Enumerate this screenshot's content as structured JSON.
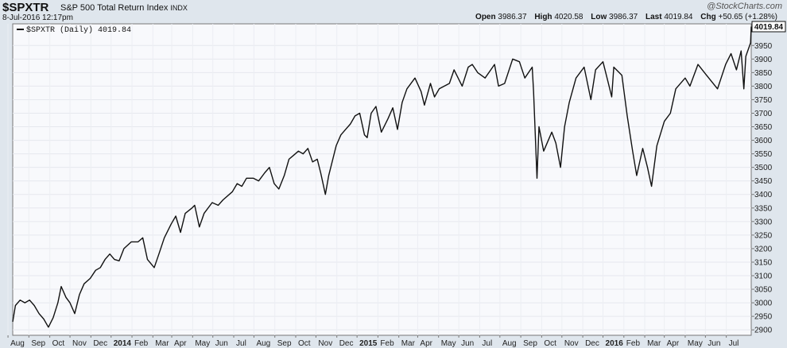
{
  "header": {
    "symbol": "$SPXTR",
    "name": "S&P 500 Total Return Index",
    "exchange": "INDX",
    "timestamp": "8-Jul-2016 12:17pm",
    "brand": "@StockCharts.com",
    "open_label": "Open",
    "open": "3986.37",
    "high_label": "High",
    "high": "4020.58",
    "low_label": "Low",
    "low": "3986.37",
    "last_label": "Last",
    "last": "4019.84",
    "chg_label": "Chg",
    "chg": "+50.65 (+1.28%)"
  },
  "chart_data": {
    "type": "line",
    "legend": "$SPXTR (Daily) 4019.84",
    "last_value_label": "4019.84",
    "ylim": [
      2880,
      4030
    ],
    "yticks": [
      2900,
      2950,
      3000,
      3050,
      3100,
      3150,
      3200,
      3250,
      3300,
      3350,
      3400,
      3450,
      3500,
      3550,
      3600,
      3650,
      3700,
      3750,
      3800,
      3850,
      3900,
      3950
    ],
    "x_labels": [
      "Aug",
      "Sep",
      "Oct",
      "Nov",
      "Dec",
      "2014",
      "Feb",
      "Mar",
      "Apr",
      "May",
      "Jun",
      "Jul",
      "Aug",
      "Sep",
      "Oct",
      "Nov",
      "Dec",
      "2015",
      "Feb",
      "Mar",
      "Apr",
      "May",
      "Jun",
      "Jul",
      "Aug",
      "Sep",
      "Oct",
      "Nov",
      "Dec",
      "2016",
      "Feb",
      "Mar",
      "Apr",
      "May",
      "Jun",
      "Jul"
    ],
    "bold_labels": [
      "2014",
      "2015",
      "2016"
    ],
    "x_start": "2013-07-08",
    "x_end": "2016-07-08",
    "series": [
      {
        "name": "$SPXTR",
        "points": [
          [
            "2013-07-08",
            2930
          ],
          [
            "2013-07-12",
            2990
          ],
          [
            "2013-07-19",
            3010
          ],
          [
            "2013-07-26",
            3000
          ],
          [
            "2013-08-02",
            3010
          ],
          [
            "2013-08-09",
            2990
          ],
          [
            "2013-08-16",
            2960
          ],
          [
            "2013-08-23",
            2940
          ],
          [
            "2013-08-30",
            2910
          ],
          [
            "2013-09-06",
            2945
          ],
          [
            "2013-09-13",
            3000
          ],
          [
            "2013-09-18",
            3060
          ],
          [
            "2013-09-25",
            3020
          ],
          [
            "2013-10-01",
            3000
          ],
          [
            "2013-10-08",
            2960
          ],
          [
            "2013-10-15",
            3030
          ],
          [
            "2013-10-22",
            3070
          ],
          [
            "2013-10-31",
            3090
          ],
          [
            "2013-11-08",
            3120
          ],
          [
            "2013-11-15",
            3130
          ],
          [
            "2013-11-22",
            3160
          ],
          [
            "2013-11-29",
            3180
          ],
          [
            "2013-12-06",
            3160
          ],
          [
            "2013-12-13",
            3155
          ],
          [
            "2013-12-20",
            3200
          ],
          [
            "2013-12-31",
            3225
          ],
          [
            "2014-01-10",
            3225
          ],
          [
            "2014-01-17",
            3240
          ],
          [
            "2014-01-24",
            3160
          ],
          [
            "2014-02-03",
            3130
          ],
          [
            "2014-02-10",
            3180
          ],
          [
            "2014-02-18",
            3240
          ],
          [
            "2014-02-28",
            3290
          ],
          [
            "2014-03-07",
            3320
          ],
          [
            "2014-03-14",
            3260
          ],
          [
            "2014-03-21",
            3330
          ],
          [
            "2014-03-31",
            3350
          ],
          [
            "2014-04-04",
            3360
          ],
          [
            "2014-04-11",
            3280
          ],
          [
            "2014-04-18",
            3330
          ],
          [
            "2014-04-30",
            3370
          ],
          [
            "2014-05-09",
            3360
          ],
          [
            "2014-05-16",
            3380
          ],
          [
            "2014-05-30",
            3410
          ],
          [
            "2014-06-06",
            3440
          ],
          [
            "2014-06-13",
            3430
          ],
          [
            "2014-06-20",
            3460
          ],
          [
            "2014-06-30",
            3460
          ],
          [
            "2014-07-08",
            3450
          ],
          [
            "2014-07-17",
            3480
          ],
          [
            "2014-07-24",
            3500
          ],
          [
            "2014-07-31",
            3440
          ],
          [
            "2014-08-07",
            3420
          ],
          [
            "2014-08-15",
            3470
          ],
          [
            "2014-08-22",
            3530
          ],
          [
            "2014-08-29",
            3545
          ],
          [
            "2014-09-05",
            3560
          ],
          [
            "2014-09-12",
            3550
          ],
          [
            "2014-09-19",
            3570
          ],
          [
            "2014-09-26",
            3520
          ],
          [
            "2014-10-03",
            3530
          ],
          [
            "2014-10-08",
            3480
          ],
          [
            "2014-10-15",
            3400
          ],
          [
            "2014-10-20",
            3470
          ],
          [
            "2014-10-31",
            3580
          ],
          [
            "2014-11-07",
            3620
          ],
          [
            "2014-11-14",
            3640
          ],
          [
            "2014-11-21",
            3660
          ],
          [
            "2014-11-28",
            3690
          ],
          [
            "2014-12-05",
            3700
          ],
          [
            "2014-12-12",
            3620
          ],
          [
            "2014-12-16",
            3610
          ],
          [
            "2014-12-22",
            3700
          ],
          [
            "2014-12-29",
            3725
          ],
          [
            "2015-01-06",
            3630
          ],
          [
            "2015-01-16",
            3680
          ],
          [
            "2015-01-23",
            3720
          ],
          [
            "2015-01-30",
            3640
          ],
          [
            "2015-02-06",
            3740
          ],
          [
            "2015-02-13",
            3790
          ],
          [
            "2015-02-25",
            3830
          ],
          [
            "2015-03-06",
            3780
          ],
          [
            "2015-03-11",
            3730
          ],
          [
            "2015-03-20",
            3810
          ],
          [
            "2015-03-26",
            3760
          ],
          [
            "2015-04-02",
            3790
          ],
          [
            "2015-04-17",
            3810
          ],
          [
            "2015-04-24",
            3860
          ],
          [
            "2015-05-06",
            3800
          ],
          [
            "2015-05-15",
            3870
          ],
          [
            "2015-05-21",
            3880
          ],
          [
            "2015-05-29",
            3850
          ],
          [
            "2015-06-09",
            3830
          ],
          [
            "2015-06-23",
            3880
          ],
          [
            "2015-06-29",
            3800
          ],
          [
            "2015-07-08",
            3810
          ],
          [
            "2015-07-20",
            3900
          ],
          [
            "2015-07-30",
            3890
          ],
          [
            "2015-08-07",
            3830
          ],
          [
            "2015-08-18",
            3870
          ],
          [
            "2015-08-20",
            3780
          ],
          [
            "2015-08-25",
            3460
          ],
          [
            "2015-08-28",
            3650
          ],
          [
            "2015-09-04",
            3560
          ],
          [
            "2015-09-16",
            3630
          ],
          [
            "2015-09-22",
            3590
          ],
          [
            "2015-09-29",
            3500
          ],
          [
            "2015-10-05",
            3650
          ],
          [
            "2015-10-12",
            3740
          ],
          [
            "2015-10-22",
            3830
          ],
          [
            "2015-11-03",
            3870
          ],
          [
            "2015-11-13",
            3750
          ],
          [
            "2015-11-20",
            3860
          ],
          [
            "2015-12-01",
            3890
          ],
          [
            "2015-12-08",
            3820
          ],
          [
            "2015-12-14",
            3760
          ],
          [
            "2015-12-17",
            3870
          ],
          [
            "2015-12-29",
            3840
          ],
          [
            "2016-01-06",
            3690
          ],
          [
            "2016-01-14",
            3560
          ],
          [
            "2016-01-20",
            3470
          ],
          [
            "2016-01-29",
            3570
          ],
          [
            "2016-02-05",
            3500
          ],
          [
            "2016-02-11",
            3430
          ],
          [
            "2016-02-19",
            3580
          ],
          [
            "2016-03-01",
            3670
          ],
          [
            "2016-03-10",
            3700
          ],
          [
            "2016-03-18",
            3790
          ],
          [
            "2016-04-01",
            3830
          ],
          [
            "2016-04-08",
            3800
          ],
          [
            "2016-04-20",
            3880
          ],
          [
            "2016-05-06",
            3830
          ],
          [
            "2016-05-19",
            3790
          ],
          [
            "2016-05-31",
            3880
          ],
          [
            "2016-06-08",
            3920
          ],
          [
            "2016-06-16",
            3860
          ],
          [
            "2016-06-23",
            3930
          ],
          [
            "2016-06-27",
            3790
          ],
          [
            "2016-06-30",
            3910
          ],
          [
            "2016-07-07",
            3960
          ],
          [
            "2016-07-08",
            4019.84
          ]
        ]
      }
    ]
  }
}
